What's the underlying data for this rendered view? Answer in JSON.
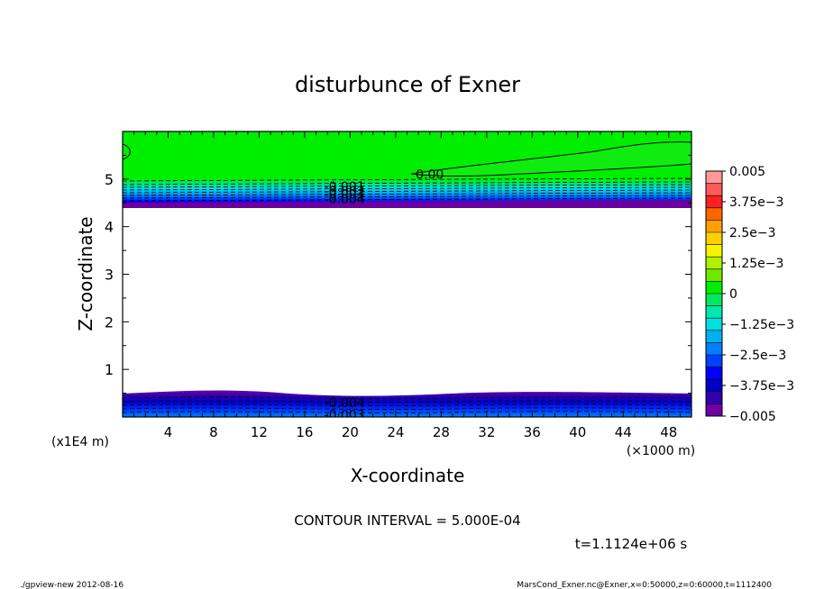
{
  "chart_data": {
    "type": "heatmap",
    "title": "disturbunce of Exner",
    "xlabel": "X-coordinate",
    "ylabel": "Z-coordinate",
    "x_unit": "(×1000 m)",
    "y_unit": "(x1E4 m)",
    "xlim": [
      0,
      50
    ],
    "ylim": [
      0,
      6
    ],
    "x_ticks": [
      4,
      8,
      12,
      16,
      20,
      24,
      28,
      32,
      36,
      40,
      44,
      48
    ],
    "y_ticks": [
      1,
      2,
      3,
      4,
      5
    ],
    "colorbar": {
      "range": [
        -0.005,
        0.005
      ],
      "labels": [
        "0.005",
        "3.75e-3",
        "2.5e-3",
        "1.25e-3",
        "0",
        "-1.25e-3",
        "-2.5e-3",
        "-3.75e-3",
        "-0.005"
      ],
      "colors": [
        "#ff9a9a",
        "#ff5a5a",
        "#ff2020",
        "#ff6600",
        "#ffa000",
        "#ffd000",
        "#f4f400",
        "#b0f000",
        "#70e800",
        "#00ee00",
        "#00e860",
        "#00e8b0",
        "#00e0e0",
        "#00b0f0",
        "#0080ff",
        "#0040ff",
        "#0000ff",
        "#0000c8",
        "#3000b0",
        "#7000a0"
      ]
    },
    "contour_labels": [
      {
        "text": "0.00",
        "x": 27,
        "z": 5.1
      },
      {
        "text": "-0.001",
        "x": 19.5,
        "z": 4.85
      },
      {
        "text": "-0.002",
        "x": 19.5,
        "z": 4.75
      },
      {
        "text": "-0.003",
        "x": 19.5,
        "z": 4.68
      },
      {
        "text": "-0.004",
        "x": 19.5,
        "z": 4.58
      },
      {
        "text": "-0.004",
        "x": 19.5,
        "z": 0.3
      },
      {
        "text": "-0.003",
        "x": 19.5,
        "z": 0.05
      }
    ],
    "regions": {
      "top_band_z": [
        4.4,
        6.0
      ],
      "bottom_band_z": [
        0.0,
        0.5
      ],
      "interior": "no data"
    }
  },
  "annotations": {
    "contour_interval": "CONTOUR INTERVAL = 5.000E-04",
    "time": "t=1.1124e+06 s",
    "footer_left": "./gpview-new  2012-08-16",
    "footer_right": "MarsCond_Exner.nc@Exner,x=0:50000,z=0:60000,t=1112400"
  }
}
